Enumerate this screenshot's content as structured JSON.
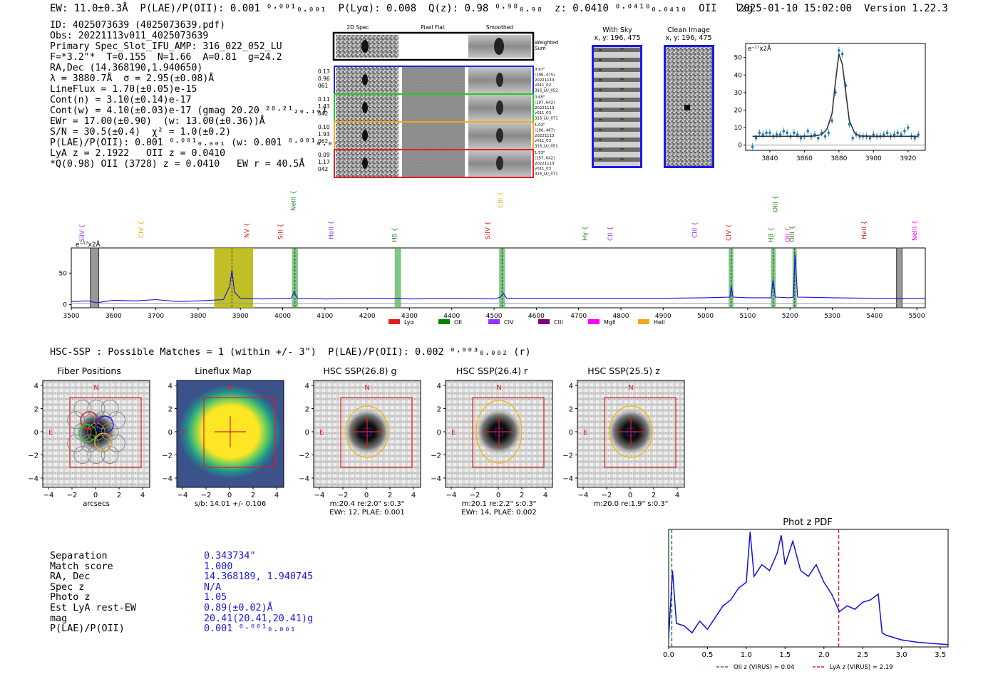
{
  "header": {
    "summary": "EW: 11.0±0.3Å  P(LAE)/P(OII): 0.001 ⁰·⁰⁰¹₀.₀₀₁  P(Lyα): 0.008  Q(z): 0.98 ⁰·⁹⁸₀.₉₈  z: 0.0410 ⁰·⁰⁴¹⁰₀.₀₄₁₀  OII   lzg",
    "timestamp": "2025-01-10 15:02:00",
    "version": "Version 1.22.3"
  },
  "info_lines": [
    "ID: 4025073639 (4025073639.pdf)",
    "Obs: 20221113v011_4025073639",
    "Primary Spec_Slot_IFU_AMP: 316_022_052_LU",
    "F=*3.2\"*  T=0.155  N=1.66  A=0.81  g=24.2",
    "RA,Dec (14.368190,1.940650)",
    "λ = 3880.7Å  σ = 2.95(±0.08)Å",
    "LineFlux = 1.70(±0.05)e-15",
    "Cont(n) = 3.10(±0.14)e-17",
    "Cont(w) = 4.10(±0.03)e-17 (gmag 20.20 ²⁰·²¹₂₀.₁₉)",
    "EWr = 17.00(±0.90)  (w: 13.00(±0.36))Å",
    "S/N = 30.5(±0.4)  χ² = 1.0(±0.2)",
    "P(LAE)/P(OII): 0.001 ⁰·⁰⁰¹₀.₀₀₁ (w: 0.001 ⁰·⁰⁰¹₀.₀₀₁)",
    "LyA z = 2.1922   OII z = 0.0410",
    "*Q(0.98) OII (3728) z = 0.0410   EW r = 40.5Å"
  ],
  "cutouts": {
    "col_titles": [
      "2D Spec",
      "Pixel Flat",
      "Smoothed"
    ],
    "weighted_label": "Weighted Sum",
    "rows": [
      {
        "left": [
          "0.13",
          "0.96",
          "061"
        ],
        "right": [
          "0.97\"",
          "(196, 475)",
          "20221113",
          "v011_02",
          "316_LU_052"
        ],
        "color": "#2222dd"
      },
      {
        "left": [
          "0.11",
          "1.43",
          "042"
        ],
        "right": [
          "0.65\"",
          "(197, 642)",
          "20221113",
          "v011_03",
          "316_LU_071"
        ],
        "color": "#22cc22"
      },
      {
        "left": [
          "0.10",
          "1.93",
          "062"
        ],
        "right": [
          "1.02\"",
          "(196, 467)",
          "20221113",
          "v011_03",
          "316_LU_051"
        ],
        "color": "#f5a623"
      },
      {
        "left": [
          "0.09",
          "1.17",
          "042"
        ],
        "right": [
          "1.53\"",
          "(197, 642)",
          "20221113",
          "v011_03",
          "316_LU_071"
        ],
        "color": "#e02020"
      }
    ]
  },
  "sky_panels": {
    "with_sky_title": "With Sky",
    "clean_title": "Clean Image",
    "coords": "x, y: 196, 475"
  },
  "line_fit": {
    "unit_label": "e⁻¹⁷x2Å",
    "x_ticks": [
      "3840",
      "3860",
      "3880",
      "3900",
      "3920"
    ],
    "y_ticks": [
      "0",
      "10",
      "20",
      "30",
      "40",
      "50"
    ]
  },
  "spectrum": {
    "unit_label": "e⁻¹⁷x2Å",
    "x_ticks": [
      "3500",
      "3600",
      "3700",
      "3800",
      "3900",
      "4000",
      "4100",
      "4200",
      "4300",
      "4400",
      "4500",
      "4600",
      "4700",
      "4800",
      "4900",
      "5000",
      "5100",
      "5200",
      "5300",
      "5400",
      "5500"
    ],
    "y_ticks": [
      "0",
      "50"
    ],
    "line_labels": [
      {
        "name": "SiIV",
        "color": "#9b30ff"
      },
      {
        "name": "CIV",
        "color": "#f5a623"
      },
      {
        "name": "NV",
        "color": "#e02020"
      },
      {
        "name": "SiII",
        "color": "#e02020"
      },
      {
        "name": "NeIII",
        "color": "#228b22"
      },
      {
        "name": "HeII",
        "color": "#9b30ff"
      },
      {
        "name": "Hδ",
        "color": "#228b22"
      },
      {
        "name": "SiIV",
        "color": "#e02020"
      },
      {
        "name": "CIII",
        "color": "#f5a623"
      },
      {
        "name": "Hγ",
        "color": "#228b22"
      },
      {
        "name": "CII",
        "color": "#9b30ff"
      },
      {
        "name": "CIII",
        "color": "#9b30ff"
      },
      {
        "name": "CIV",
        "color": "#e02020"
      },
      {
        "name": "Hβ",
        "color": "#228b22"
      },
      {
        "name": "OIII",
        "color": "#228b22"
      },
      {
        "name": "OII",
        "color": "#ff00ff"
      },
      {
        "name": "OIII",
        "color": "#228b22"
      },
      {
        "name": "HeII",
        "color": "#e02020"
      },
      {
        "name": "NeIII",
        "color": "#ff00ff"
      },
      {
        "name": "CII",
        "color": "#f5a623"
      }
    ],
    "legend": [
      {
        "name": "Lyα",
        "color": "#e02020"
      },
      {
        "name": "OII",
        "color": "#008000"
      },
      {
        "name": "CIV",
        "color": "#9b30ff"
      },
      {
        "name": "CIII",
        "color": "#800080"
      },
      {
        "name": "MgII",
        "color": "#ff00ff"
      },
      {
        "name": "HeII",
        "color": "#f5a623"
      }
    ]
  },
  "hsc": {
    "line": "HSC-SSP : Possible Matches = 1 (within +/- 3\")  P(LAE)/P(OII): 0.002 ⁰·⁰⁰³₀.₀₀₂ (r)",
    "panels": [
      {
        "title": "Fiber Positions",
        "xlabel": "arcsecs",
        "sub": ""
      },
      {
        "title": "Lineflux Map",
        "xlabel": "s/b: 14.01 +/- 0.106",
        "sub": ""
      },
      {
        "title": "HSC SSP(26.8) g",
        "xlabel": "m:20.4  re:2.0\"  s:0.3\"",
        "sub": "EWr: 12, PLAE: 0.001"
      },
      {
        "title": "HSC SSP(26.4) r",
        "xlabel": "m:20.1  re:2.2\"  s:0.3\"",
        "sub": "EWr: 14, PLAE: 0.002"
      },
      {
        "title": "HSC SSP(25.5) z",
        "xlabel": "m:20.0  re:1.9\"  s:0.3\"",
        "sub": ""
      }
    ],
    "ticks": [
      "4",
      "2",
      "0",
      "−2",
      "−4"
    ],
    "xticks": [
      "−4",
      "−2",
      "0",
      "2",
      "4"
    ],
    "compass_n": "N",
    "compass_e": "E"
  },
  "match": [
    {
      "k": "Separation",
      "v": "0.343734\""
    },
    {
      "k": "Match score",
      "v": "1.000"
    },
    {
      "k": "RA, Dec",
      "v": "14.368189, 1.940745"
    },
    {
      "k": "Spec z",
      "v": "N/A"
    },
    {
      "k": "Photo z",
      "v": "1.05"
    },
    {
      "k": "Est LyA rest-EW",
      "v": "0.89(±0.02)Å"
    },
    {
      "k": "mag",
      "v": "20.41(20.41,20.41)g"
    },
    {
      "k": "P(LAE)/P(OII)",
      "v": "0.001 ⁰·⁰⁰¹₀.₀₀₁"
    }
  ],
  "chart_data": [
    {
      "type": "line",
      "title": "",
      "xlabel": "",
      "ylabel": "e⁻¹⁷x2Å",
      "xlim": [
        3826,
        3930
      ],
      "ylim": [
        -3,
        58
      ],
      "series": [
        {
          "x": [
            3830,
            3832,
            3834,
            3836,
            3838,
            3840,
            3842,
            3844,
            3846,
            3848,
            3850,
            3852,
            3854,
            3856,
            3858,
            3860,
            3862,
            3864,
            3866,
            3868,
            3870,
            3872,
            3874,
            3876,
            3878,
            3880,
            3882,
            3884,
            3886,
            3888,
            3890,
            3892,
            3894,
            3896,
            3898,
            3900,
            3902,
            3904,
            3906,
            3908,
            3910,
            3912,
            3914,
            3916,
            3918,
            3920,
            3922,
            3924,
            3926
          ],
          "y": [
            -1,
            4,
            7,
            6,
            7,
            7,
            5,
            6,
            6,
            8,
            7,
            5,
            7,
            6,
            4,
            5,
            8,
            5,
            6,
            4,
            7,
            5,
            7,
            14,
            30,
            54,
            52,
            34,
            12,
            4,
            6,
            5,
            5,
            5,
            4,
            6,
            5,
            5,
            6,
            7,
            5,
            6,
            7,
            6,
            8,
            10,
            5,
            4,
            6
          ]
        },
        {
          "x": [
            3830,
            3860,
            3866,
            3870,
            3873,
            3876,
            3878,
            3880,
            3882,
            3884,
            3886,
            3889,
            3892,
            3900,
            3926
          ],
          "y": [
            5,
            5,
            5.2,
            6,
            9,
            18,
            36,
            52,
            46,
            30,
            14,
            7,
            5.2,
            5,
            5
          ]
        }
      ]
    },
    {
      "type": "line",
      "title": "",
      "xlabel": "",
      "ylabel": "e⁻¹⁷x2Å",
      "xlim": [
        3500,
        5520
      ],
      "ylim": [
        -5,
        90
      ],
      "series": [
        {
          "x": [
            3500,
            3540,
            3560,
            3600,
            3650,
            3700,
            3750,
            3800,
            3860,
            3875,
            3880,
            3886,
            3900,
            3950,
            4000,
            4020,
            4027,
            4035,
            4100,
            4200,
            4270,
            4300,
            4400,
            4500,
            4515,
            4522,
            4530,
            4600,
            4700,
            4800,
            4900,
            5000,
            5058,
            5061,
            5065,
            5100,
            5155,
            5160,
            5165,
            5200,
            5208,
            5212,
            5218,
            5300,
            5400,
            5500,
            5520
          ],
          "y": [
            5,
            6,
            3,
            7,
            6,
            8,
            5,
            6,
            8,
            30,
            55,
            20,
            10,
            9,
            10,
            10,
            20,
            10,
            9,
            10,
            10,
            9,
            10,
            9,
            12,
            18,
            10,
            10,
            10,
            10,
            10,
            11,
            12,
            30,
            12,
            11,
            11,
            40,
            12,
            11,
            12,
            80,
            12,
            11,
            10,
            10,
            10
          ]
        }
      ]
    },
    {
      "type": "line",
      "title": "Phot z PDF",
      "xlabel": "",
      "ylabel": "",
      "xlim": [
        0,
        3.6
      ],
      "ylim": [
        0,
        1
      ],
      "series": [
        {
          "name": "Phot z PDF",
          "x": [
            0,
            0.05,
            0.1,
            0.2,
            0.3,
            0.4,
            0.5,
            0.6,
            0.7,
            0.8,
            0.9,
            1.0,
            1.05,
            1.1,
            1.2,
            1.3,
            1.4,
            1.45,
            1.5,
            1.6,
            1.7,
            1.8,
            1.9,
            2.0,
            2.1,
            2.2,
            2.3,
            2.4,
            2.5,
            2.6,
            2.7,
            2.75,
            2.8,
            3.0,
            3.2,
            3.4,
            3.6
          ],
          "y": [
            0.08,
            0.65,
            0.2,
            0.18,
            0.12,
            0.22,
            0.15,
            0.25,
            0.35,
            0.4,
            0.5,
            0.55,
            0.98,
            0.6,
            0.7,
            0.65,
            0.8,
            0.95,
            0.7,
            0.9,
            0.65,
            0.6,
            0.7,
            0.55,
            0.45,
            0.3,
            0.35,
            0.32,
            0.38,
            0.4,
            0.45,
            0.12,
            0.1,
            0.06,
            0.04,
            0.03,
            0.02
          ]
        }
      ],
      "legend": [
        {
          "name": "OII z (VIRUS) = 0.04",
          "color": "#228b22",
          "x": 0.04
        },
        {
          "name": "LyA z (VIRUS) = 2.19",
          "color": "#e02020",
          "x": 2.19
        }
      ],
      "x_ticks": [
        "0.0",
        "0.5",
        "1.0",
        "1.5",
        "2.0",
        "2.5",
        "3.0",
        "3.5"
      ]
    }
  ]
}
